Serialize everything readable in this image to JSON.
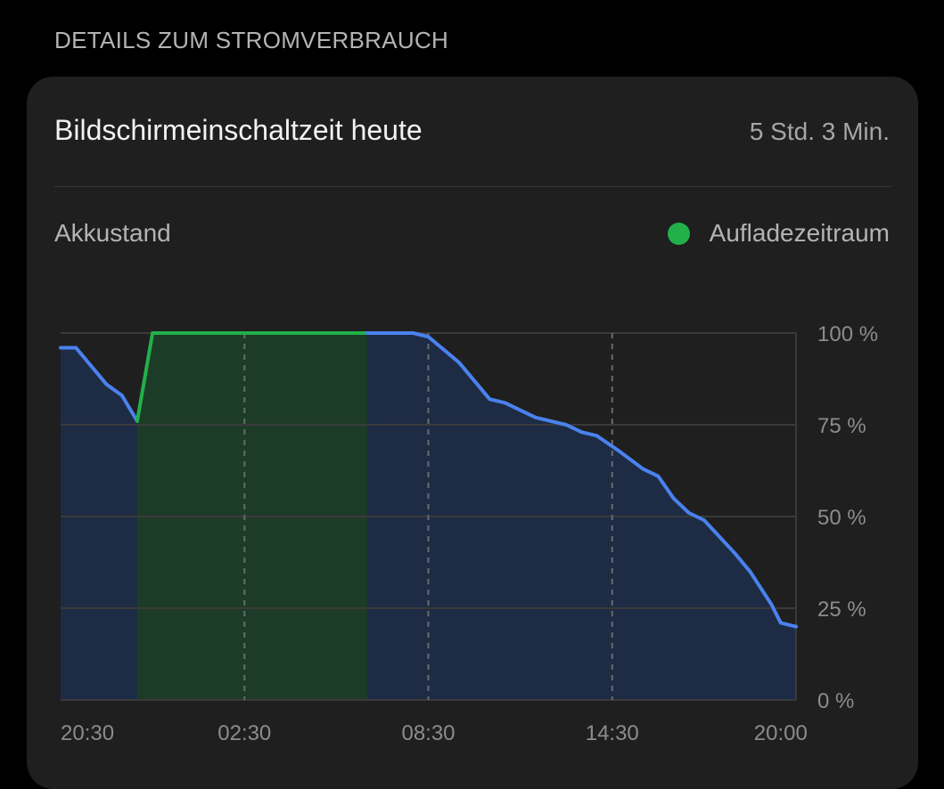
{
  "section": {
    "header": "DETAILS ZUM STROMVERBRAUCH"
  },
  "card": {
    "title": "Bildschirmeinschaltzeit heute",
    "value": "5 Std. 3 Min."
  },
  "chart_label": "Akkustand",
  "legend": {
    "label": "Aufladezeitraum",
    "color": "#22b04b"
  },
  "colors": {
    "line": "#4a82ee",
    "charge_line": "#22b04b",
    "fill_blue": "#1e2d47",
    "fill_green": "#1d3c27",
    "grid": "#3a3a3a"
  },
  "chart_data": {
    "type": "area",
    "title": "",
    "xlabel": "",
    "ylabel": "",
    "x_tick_labels": [
      "20:30",
      "02:30",
      "08:30",
      "14:30",
      "20:00"
    ],
    "x_tick_hours": [
      0,
      6,
      12,
      18,
      23.5
    ],
    "y_ticks": [
      0,
      25,
      50,
      75,
      100
    ],
    "y_tick_labels": [
      "0 %",
      "25 %",
      "50 %",
      "75 %",
      "100 %"
    ],
    "ylim": [
      0,
      100
    ],
    "xlim_hours": [
      0,
      24
    ],
    "x_unit": "hours since 20:30",
    "charging_period_hours": [
      2.5,
      10
    ],
    "series": [
      {
        "name": "Akkustand",
        "points": [
          [
            0,
            96
          ],
          [
            0.5,
            96
          ],
          [
            1.5,
            86
          ],
          [
            2.0,
            83
          ],
          [
            2.5,
            76
          ],
          [
            3.0,
            100
          ],
          [
            10,
            100
          ],
          [
            11.5,
            100
          ],
          [
            12.0,
            99
          ],
          [
            13.0,
            92
          ],
          [
            13.6,
            86
          ],
          [
            14.0,
            82
          ],
          [
            14.5,
            81
          ],
          [
            15.5,
            77
          ],
          [
            16.5,
            75
          ],
          [
            17.0,
            73
          ],
          [
            17.5,
            72
          ],
          [
            18.2,
            68
          ],
          [
            19.0,
            63
          ],
          [
            19.5,
            61
          ],
          [
            20.0,
            55
          ],
          [
            20.5,
            51
          ],
          [
            21.0,
            49
          ],
          [
            22.0,
            40
          ],
          [
            22.5,
            35
          ],
          [
            23.2,
            26
          ],
          [
            23.5,
            21
          ],
          [
            24.0,
            20
          ]
        ]
      }
    ],
    "grid": true
  }
}
